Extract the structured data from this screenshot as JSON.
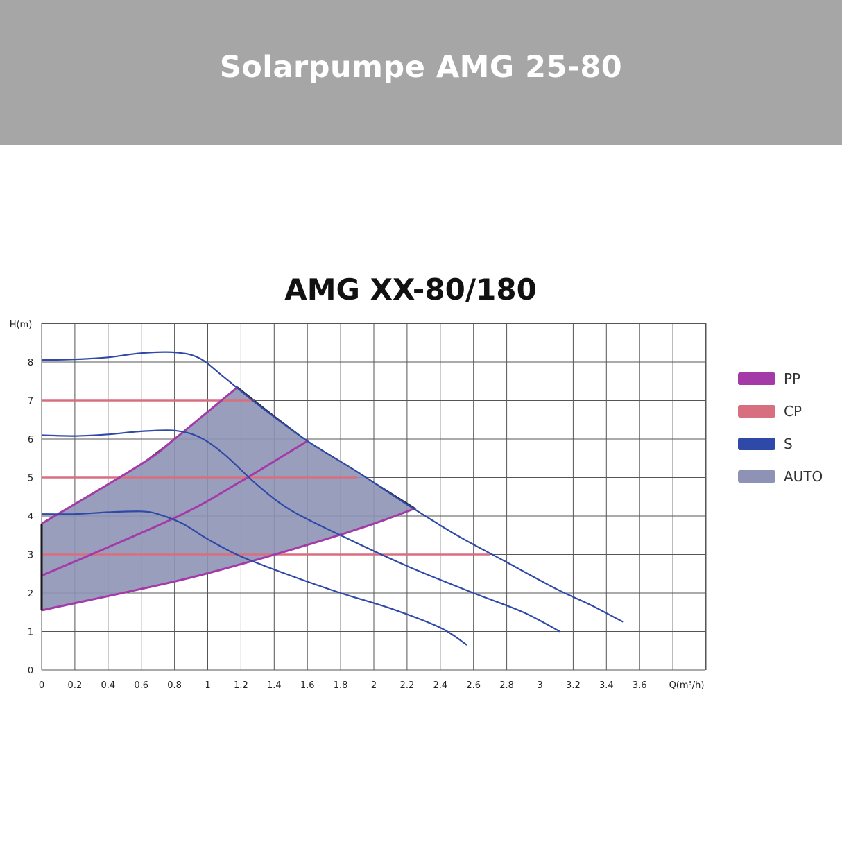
{
  "banner": {
    "title": "Solarpumpe AMG 25-80"
  },
  "colors": {
    "banner": "#a6a6a6",
    "pp": "#a43aa8",
    "cp": "#d86f80",
    "s": "#2e49a8",
    "auto": "#8e93b5"
  },
  "chart_data": {
    "type": "line",
    "title": "AMG XX-80/180",
    "ylabel": "H(m)",
    "xlabel": "Q(m³/h)",
    "xlim": [
      0,
      4.0
    ],
    "ylim": [
      0,
      9
    ],
    "grid": true,
    "legend_placement": "right",
    "x_ticks": [
      "0",
      "0.2",
      "0.4",
      "0.6",
      "0.8",
      "1",
      "1.2",
      "1.4",
      "1.6",
      "1.8",
      "2",
      "2.2",
      "2.4",
      "2.6",
      "2.8",
      "3",
      "3.2",
      "3.4",
      "3.6"
    ],
    "y_ticks": [
      "0",
      "1",
      "2",
      "3",
      "4",
      "5",
      "6",
      "7",
      "8"
    ],
    "legend": [
      {
        "label": "PP",
        "key": "pp"
      },
      {
        "label": "CP",
        "key": "cp"
      },
      {
        "label": "S",
        "key": "s"
      },
      {
        "label": "AUTO",
        "key": "auto"
      }
    ],
    "series": {
      "s": [
        [
          [
            0,
            8.05
          ],
          [
            0.2,
            8.07
          ],
          [
            0.4,
            8.12
          ],
          [
            0.6,
            8.23
          ],
          [
            0.8,
            8.25
          ],
          [
            0.95,
            8.1
          ],
          [
            1.1,
            7.6
          ],
          [
            1.3,
            6.9
          ],
          [
            1.6,
            5.95
          ],
          [
            1.9,
            5.15
          ],
          [
            2.2,
            4.3
          ],
          [
            2.5,
            3.5
          ],
          [
            2.8,
            2.8
          ],
          [
            3.1,
            2.1
          ],
          [
            3.3,
            1.7
          ],
          [
            3.5,
            1.25
          ]
        ],
        [
          [
            0,
            6.1
          ],
          [
            0.2,
            6.08
          ],
          [
            0.4,
            6.12
          ],
          [
            0.6,
            6.2
          ],
          [
            0.8,
            6.22
          ],
          [
            0.95,
            6.05
          ],
          [
            1.1,
            5.6
          ],
          [
            1.3,
            4.8
          ],
          [
            1.5,
            4.15
          ],
          [
            1.8,
            3.5
          ],
          [
            2.2,
            2.7
          ],
          [
            2.6,
            2.0
          ],
          [
            2.9,
            1.5
          ],
          [
            3.12,
            1.0
          ]
        ],
        [
          [
            0,
            4.05
          ],
          [
            0.2,
            4.05
          ],
          [
            0.4,
            4.1
          ],
          [
            0.6,
            4.12
          ],
          [
            0.7,
            4.05
          ],
          [
            0.85,
            3.8
          ],
          [
            1.0,
            3.4
          ],
          [
            1.2,
            2.95
          ],
          [
            1.5,
            2.45
          ],
          [
            1.8,
            2.0
          ],
          [
            2.1,
            1.6
          ],
          [
            2.4,
            1.1
          ],
          [
            2.56,
            0.65
          ]
        ]
      ],
      "cp": [
        {
          "y": 7,
          "x_end": 1.28
        },
        {
          "y": 5,
          "x_end": 1.9
        },
        {
          "y": 3,
          "x_end": 2.7
        }
      ],
      "pp": [
        [
          [
            0,
            3.8
          ],
          [
            0.6,
            5.35
          ],
          [
            0.8,
            6.0
          ],
          [
            1.18,
            7.35
          ]
        ],
        [
          [
            0,
            2.45
          ],
          [
            0.8,
            3.95
          ],
          [
            1.2,
            4.9
          ],
          [
            1.6,
            5.95
          ]
        ],
        [
          [
            0,
            1.55
          ],
          [
            0.8,
            2.3
          ],
          [
            1.2,
            2.75
          ],
          [
            1.6,
            3.25
          ],
          [
            2.0,
            3.8
          ],
          [
            2.25,
            4.2
          ]
        ]
      ],
      "auto": [
        [
          0,
          3.8
        ],
        [
          0.6,
          5.35
        ],
        [
          0.8,
          6.0
        ],
        [
          1.18,
          7.35
        ],
        [
          1.4,
          6.6
        ],
        [
          1.6,
          5.95
        ],
        [
          1.9,
          5.15
        ],
        [
          2.25,
          4.2
        ],
        [
          2.0,
          3.8
        ],
        [
          1.6,
          3.25
        ],
        [
          1.2,
          2.75
        ],
        [
          0.8,
          2.3
        ],
        [
          0,
          1.55
        ]
      ]
    }
  }
}
